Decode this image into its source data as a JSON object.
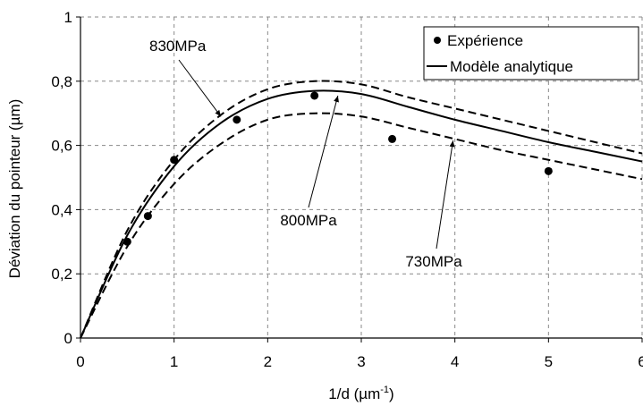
{
  "chart_data": {
    "type": "line",
    "xlabel": "1/d (µm",
    "xlabel_sup": "-1",
    "xlabel_close": ")",
    "ylabel": "Déviation du pointeur (µm)",
    "xlim": [
      0,
      6
    ],
    "ylim": [
      0,
      1
    ],
    "xticks": [
      0,
      1,
      2,
      3,
      4,
      5,
      6
    ],
    "yticks": [
      0,
      0.2,
      0.4,
      0.6,
      0.8,
      1
    ],
    "ytick_labels": [
      "0",
      "0,2",
      "0,4",
      "0,6",
      "0,8",
      "1"
    ],
    "xtick_labels": [
      "0",
      "1",
      "2",
      "3",
      "4",
      "5",
      "6"
    ],
    "grid": true,
    "legend_position": "top-right",
    "legend": {
      "experience": "Expérience",
      "model": "Modèle analytique"
    },
    "series": [
      {
        "name": "Expérience",
        "kind": "scatter",
        "x": [
          0.5,
          0.72,
          1.0,
          1.67,
          2.5,
          3.33,
          5.0
        ],
        "y": [
          0.3,
          0.38,
          0.555,
          0.68,
          0.755,
          0.62,
          0.52
        ]
      },
      {
        "name": "Modèle analytique",
        "kind": "solid",
        "x": [
          0,
          0.5,
          1.0,
          1.5,
          2.0,
          2.5,
          3.0,
          3.5,
          4.0,
          4.5,
          5.0,
          5.5,
          6.0
        ],
        "y": [
          0,
          0.32,
          0.535,
          0.67,
          0.745,
          0.77,
          0.76,
          0.72,
          0.68,
          0.645,
          0.61,
          0.58,
          0.55
        ]
      },
      {
        "kind": "dashed",
        "x": [
          0,
          0.5,
          1.0,
          1.5,
          2.0,
          2.5,
          3.0,
          3.5,
          4.0,
          4.5,
          5.0,
          5.5,
          6.0
        ],
        "y": [
          0,
          0.335,
          0.555,
          0.695,
          0.775,
          0.8,
          0.79,
          0.75,
          0.715,
          0.68,
          0.645,
          0.61,
          0.575
        ]
      },
      {
        "kind": "dashed",
        "x": [
          0,
          0.5,
          1.0,
          1.5,
          2.0,
          2.5,
          3.0,
          3.5,
          4.0,
          4.5,
          5.0,
          5.5,
          6.0
        ],
        "y": [
          0,
          0.285,
          0.48,
          0.605,
          0.68,
          0.7,
          0.69,
          0.655,
          0.62,
          0.585,
          0.555,
          0.525,
          0.495
        ]
      }
    ],
    "annotations": [
      {
        "text": "830MPa",
        "arrow_to": [
          1.5,
          0.69
        ]
      },
      {
        "text": "800MPa",
        "arrow_to": [
          2.75,
          0.755
        ]
      },
      {
        "text": "730MPa",
        "arrow_to": [
          3.98,
          0.615
        ]
      }
    ]
  }
}
